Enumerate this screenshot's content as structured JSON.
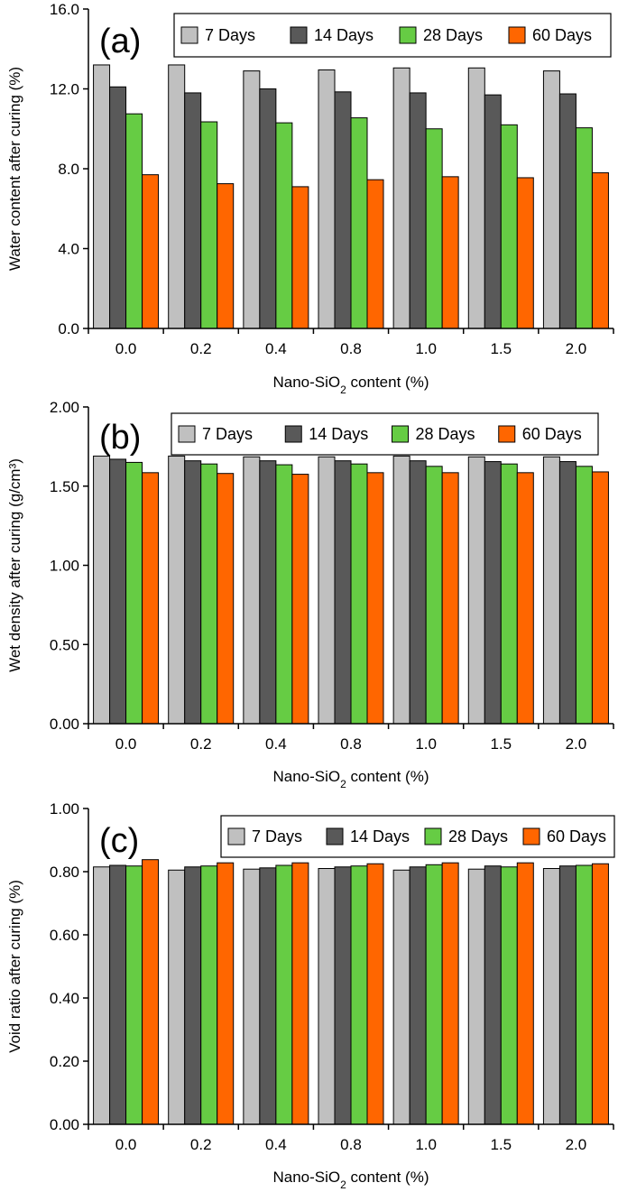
{
  "chart_data": [
    {
      "type": "bar",
      "panel_label": "(a)",
      "title": "",
      "categories": [
        "0.0",
        "0.2",
        "0.4",
        "0.8",
        "1.0",
        "1.5",
        "2.0"
      ],
      "series": [
        {
          "name": "7 Days",
          "color": "#c0c0c0",
          "values": [
            13.2,
            13.2,
            12.9,
            12.95,
            13.05,
            13.05,
            12.9
          ]
        },
        {
          "name": "14 Days",
          "color": "#595959",
          "values": [
            12.1,
            11.8,
            12.0,
            11.85,
            11.8,
            11.7,
            11.75
          ]
        },
        {
          "name": "28 Days",
          "color": "#66cc44",
          "values": [
            10.75,
            10.35,
            10.3,
            10.55,
            10.0,
            10.2,
            10.05
          ]
        },
        {
          "name": "60 Days",
          "color": "#ff6600",
          "values": [
            7.7,
            7.25,
            7.1,
            7.45,
            7.6,
            7.55,
            7.8
          ]
        }
      ],
      "xlabel_prefix": "Nano-SiO",
      "xlabel_sub": "2",
      "xlabel_suffix": " content (%)",
      "ylabel": "Water content after curing (%)",
      "yticks": [
        "0.0",
        "4.0",
        "8.0",
        "12.0",
        "16.0"
      ],
      "ylim": [
        0,
        16
      ],
      "grid": false,
      "legend_position": "top-right"
    },
    {
      "type": "bar",
      "panel_label": "(b)",
      "title": "",
      "categories": [
        "0.0",
        "0.2",
        "0.4",
        "0.8",
        "1.0",
        "1.5",
        "2.0"
      ],
      "series": [
        {
          "name": "7 Days",
          "color": "#c0c0c0",
          "values": [
            1.69,
            1.69,
            1.685,
            1.685,
            1.69,
            1.685,
            1.685
          ]
        },
        {
          "name": "14 Days",
          "color": "#595959",
          "values": [
            1.67,
            1.66,
            1.66,
            1.66,
            1.66,
            1.655,
            1.655
          ]
        },
        {
          "name": "28 Days",
          "color": "#66cc44",
          "values": [
            1.65,
            1.64,
            1.635,
            1.64,
            1.625,
            1.64,
            1.625
          ]
        },
        {
          "name": "60 Days",
          "color": "#ff6600",
          "values": [
            1.585,
            1.58,
            1.575,
            1.585,
            1.585,
            1.585,
            1.59
          ]
        }
      ],
      "xlabel_prefix": "Nano-SiO",
      "xlabel_sub": "2",
      "xlabel_suffix": " content (%)",
      "ylabel": "Wet density after curing (g/cm³)",
      "yticks": [
        "0.00",
        "0.50",
        "1.00",
        "1.50",
        "2.00"
      ],
      "ylim": [
        0,
        2
      ],
      "grid": false,
      "legend_position": "top-right"
    },
    {
      "type": "bar",
      "panel_label": "(c)",
      "title": "",
      "categories": [
        "0.0",
        "0.2",
        "0.4",
        "0.8",
        "1.0",
        "1.5",
        "2.0"
      ],
      "series": [
        {
          "name": "7 Days",
          "color": "#c0c0c0",
          "values": [
            0.815,
            0.805,
            0.808,
            0.81,
            0.805,
            0.808,
            0.81
          ]
        },
        {
          "name": "14 Days",
          "color": "#595959",
          "values": [
            0.82,
            0.815,
            0.812,
            0.815,
            0.815,
            0.818,
            0.818
          ]
        },
        {
          "name": "28 Days",
          "color": "#66cc44",
          "values": [
            0.818,
            0.818,
            0.82,
            0.818,
            0.822,
            0.815,
            0.82
          ]
        },
        {
          "name": "60 Days",
          "color": "#ff6600",
          "values": [
            0.838,
            0.828,
            0.828,
            0.825,
            0.828,
            0.828,
            0.825
          ]
        }
      ],
      "xlabel_prefix": "Nano-SiO",
      "xlabel_sub": "2",
      "xlabel_suffix": " content (%)",
      "ylabel": "Void ratio after curing (%)",
      "yticks": [
        "0.00",
        "0.20",
        "0.40",
        "0.60",
        "0.80",
        "1.00"
      ],
      "ylim": [
        0,
        1
      ],
      "grid": false,
      "legend_position": "top-right"
    }
  ]
}
